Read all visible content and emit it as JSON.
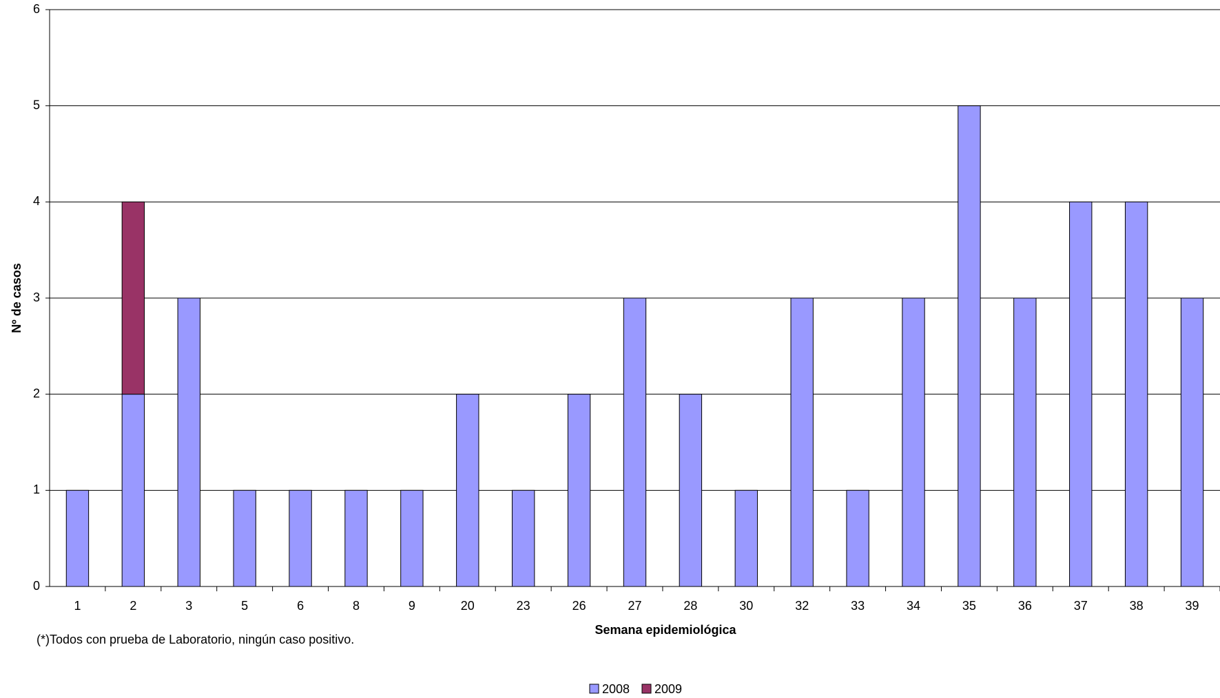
{
  "chart_data": {
    "type": "bar",
    "stacked": true,
    "x_label": "Semana epidemiológica",
    "y_label": "Nº de casos",
    "annotation": "(*)Todos con prueba de Laboratorio, ningún caso positivo.",
    "categories": [
      "1",
      "2",
      "3",
      "5",
      "6",
      "8",
      "9",
      "20",
      "23",
      "26",
      "27",
      "28",
      "30",
      "32",
      "33",
      "34",
      "35",
      "36",
      "37",
      "38",
      "39"
    ],
    "series": [
      {
        "name": "2008",
        "color": "#9999ff",
        "values": [
          1,
          2,
          3,
          1,
          1,
          1,
          1,
          2,
          1,
          2,
          3,
          2,
          1,
          3,
          1,
          3,
          5,
          3,
          4,
          4,
          3
        ]
      },
      {
        "name": "2009",
        "color": "#993366",
        "values": [
          0,
          2,
          0,
          0,
          0,
          0,
          0,
          0,
          0,
          0,
          0,
          0,
          0,
          0,
          0,
          0,
          0,
          0,
          0,
          0,
          0
        ]
      }
    ],
    "ylim": [
      0,
      6
    ],
    "yticks": [
      0,
      1,
      2,
      3,
      4,
      5,
      6
    ],
    "grid": true,
    "legend": "bottom"
  }
}
